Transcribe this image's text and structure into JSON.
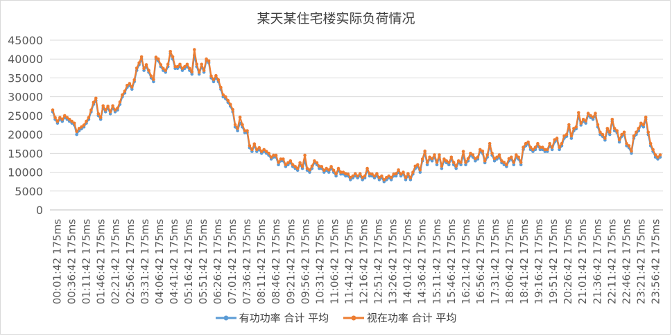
{
  "chart_data": {
    "type": "line",
    "title": "某天某住宅楼实际负荷情况",
    "xlabel": "",
    "ylabel": "",
    "ylim": [
      0,
      45000
    ],
    "yticks": [
      0,
      5000,
      10000,
      15000,
      20000,
      25000,
      30000,
      35000,
      40000,
      45000
    ],
    "grid": true,
    "legend_position": "bottom",
    "x_tick_labels": [
      "00:01:42 175ms",
      "00:36:42 175ms",
      "01:11:42 175ms",
      "01:46:42 175ms",
      "02:21:42 175ms",
      "02:56:42 175ms",
      "03:31:42 175ms",
      "04:06:42 175ms",
      "04:41:42 175ms",
      "05:16:42 175ms",
      "05:51:42 175ms",
      "06:26:42 175ms",
      "07:01:42 175ms",
      "07:36:42 175ms",
      "08:11:42 175ms",
      "08:46:42 175ms",
      "09:21:42 175ms",
      "09:56:42 175ms",
      "10:31:42 175ms",
      "11:06:42 175ms",
      "11:41:42 175ms",
      "12:16:42 175ms",
      "12:51:42 175ms",
      "13:26:42 175ms",
      "14:01:42 175ms",
      "14:36:42 175ms",
      "15:11:42 175ms",
      "15:46:42 175ms",
      "16:21:42 175ms",
      "16:56:42 175ms",
      "17:31:42 175ms",
      "18:06:42 175ms",
      "18:41:42 175ms",
      "19:16:42 175ms",
      "19:51:42 175ms",
      "20:26:42 175ms",
      "21:01:42 175ms",
      "21:36:42 175ms",
      "22:11:42 175ms",
      "22:46:42 175ms",
      "23:21:42 175ms",
      "23:56:42 175ms"
    ],
    "sample_interval": "5 min",
    "series": [
      {
        "name": "有功功率 合计 平均",
        "color": "#5b9bd5",
        "values": [
          26000,
          24000,
          23000,
          24000,
          23500,
          24500,
          24000,
          23500,
          23000,
          22500,
          20000,
          21000,
          21500,
          22000,
          23000,
          24000,
          26000,
          28000,
          29000,
          25000,
          24000,
          27000,
          26000,
          27000,
          25500,
          27000,
          26000,
          26500,
          28000,
          30000,
          31000,
          32500,
          33000,
          32000,
          34000,
          37000,
          38500,
          40000,
          37000,
          38000,
          36500,
          35000,
          34000,
          40000,
          39500,
          38000,
          37000,
          36500,
          38000,
          41500,
          40000,
          37500,
          37500,
          38000,
          37000,
          37500,
          38000,
          37000,
          36000,
          41000,
          38000,
          36000,
          38000,
          36500,
          39500,
          39000,
          35000,
          34000,
          35000,
          34000,
          32000,
          30000,
          29500,
          28500,
          27500,
          26000,
          22000,
          21000,
          23000,
          22000,
          20500,
          20500,
          16500,
          15500,
          17000,
          15500,
          16000,
          15000,
          15500,
          15000,
          14500,
          13500,
          14000,
          14000,
          12000,
          13000,
          13000,
          11500,
          12000,
          12500,
          11500,
          11000,
          10500,
          12000,
          11000,
          13000,
          10500,
          10000,
          11000,
          12500,
          12000,
          11000,
          11000,
          10000,
          10500,
          10000,
          11000,
          10000,
          9000,
          10500,
          9500,
          9500,
          9000,
          9000,
          8000,
          8500,
          9000,
          8500,
          9000,
          8000,
          8500,
          10500,
          9000,
          9000,
          8500,
          9000,
          8000,
          8500,
          7500,
          8000,
          8500,
          8000,
          9000,
          9000,
          10000,
          9000,
          9500,
          8000,
          9000,
          8000,
          9500,
          11000,
          11500,
          10000,
          13000,
          15000,
          12000,
          13500,
          13000,
          14000,
          12000,
          14000,
          11000,
          13000,
          12500,
          12000,
          13500,
          12000,
          11000,
          12500,
          12000,
          14500,
          12000,
          13000,
          14500,
          14000,
          13000,
          13500,
          15500,
          15000,
          12500,
          14000,
          17000,
          14500,
          13000,
          13500,
          14000,
          12500,
          12000,
          11500,
          13000,
          13500,
          12000,
          14000,
          13500,
          12000,
          16000,
          17000,
          17500,
          16000,
          15500,
          16000,
          17000,
          16000,
          16000,
          15500,
          15500,
          17000,
          16000,
          18000,
          18500,
          16000,
          17000,
          19000,
          19500,
          22000,
          19000,
          21000,
          21500,
          25000,
          22500,
          23500,
          23000,
          25000,
          24500,
          24000,
          25000,
          22000,
          20000,
          19500,
          18500,
          21000,
          20000,
          23500,
          21000,
          20500,
          18000,
          19500,
          20000,
          17000,
          16500,
          15000,
          19000,
          20000,
          21000,
          22500,
          22000,
          24000,
          20000,
          17000,
          15500,
          14000,
          13500,
          14000
        ]
      },
      {
        "name": "视在功率 合计 平均",
        "color": "#ed7d31",
        "values": [
          26500,
          24500,
          23500,
          24500,
          24000,
          25000,
          24500,
          24000,
          23500,
          23000,
          20800,
          21600,
          22000,
          22500,
          23500,
          24500,
          26500,
          28500,
          29600,
          25500,
          24500,
          27600,
          26500,
          27500,
          26000,
          27600,
          26500,
          27000,
          28600,
          30500,
          31500,
          33000,
          33500,
          32600,
          34500,
          37600,
          39000,
          40600,
          37500,
          38500,
          37000,
          35500,
          34600,
          40500,
          40000,
          38500,
          37500,
          37000,
          38600,
          42000,
          40600,
          38000,
          38000,
          38600,
          37500,
          38000,
          38600,
          37500,
          36600,
          42500,
          38600,
          36500,
          38600,
          37000,
          40000,
          39500,
          35500,
          34600,
          35600,
          34500,
          32500,
          30500,
          30000,
          29000,
          28000,
          26600,
          22600,
          21600,
          24600,
          22600,
          21000,
          21000,
          17000,
          16000,
          17500,
          16000,
          16500,
          15500,
          16000,
          15500,
          15000,
          14000,
          14500,
          14500,
          12600,
          13500,
          13500,
          12000,
          12500,
          13000,
          12000,
          11500,
          11000,
          12500,
          11500,
          14500,
          11000,
          10600,
          11600,
          13000,
          12500,
          11600,
          11500,
          10500,
          11000,
          10600,
          11500,
          10500,
          9600,
          11000,
          10000,
          10000,
          9600,
          9500,
          8600,
          9000,
          9600,
          9000,
          9600,
          8600,
          9000,
          11000,
          9600,
          9500,
          9000,
          9600,
          8600,
          9000,
          8000,
          8600,
          9000,
          8600,
          9500,
          9600,
          10600,
          9500,
          10000,
          8600,
          9600,
          8500,
          10000,
          11600,
          12000,
          10600,
          13500,
          15600,
          12600,
          14000,
          13600,
          14600,
          12600,
          14600,
          11600,
          13500,
          13000,
          12600,
          14000,
          12600,
          11600,
          13000,
          12600,
          15500,
          12600,
          13600,
          15000,
          14600,
          13600,
          14000,
          16000,
          15600,
          13000,
          14600,
          17600,
          15000,
          13600,
          14000,
          14600,
          13000,
          12600,
          12000,
          13600,
          14000,
          12600,
          14600,
          14000,
          12600,
          16600,
          17600,
          18000,
          16600,
          16000,
          16600,
          17600,
          16600,
          16600,
          16000,
          16000,
          17600,
          16600,
          18600,
          19000,
          16600,
          17600,
          19600,
          20000,
          22600,
          19600,
          21600,
          22000,
          25800,
          23000,
          24000,
          23600,
          25600,
          25000,
          24600,
          25600,
          22600,
          20600,
          20000,
          19000,
          21600,
          20600,
          24000,
          21600,
          21000,
          18600,
          20000,
          20600,
          17600,
          17000,
          15600,
          19600,
          20600,
          21600,
          23000,
          22600,
          24600,
          20600,
          17600,
          16000,
          14600,
          14000,
          14600
        ]
      }
    ]
  }
}
